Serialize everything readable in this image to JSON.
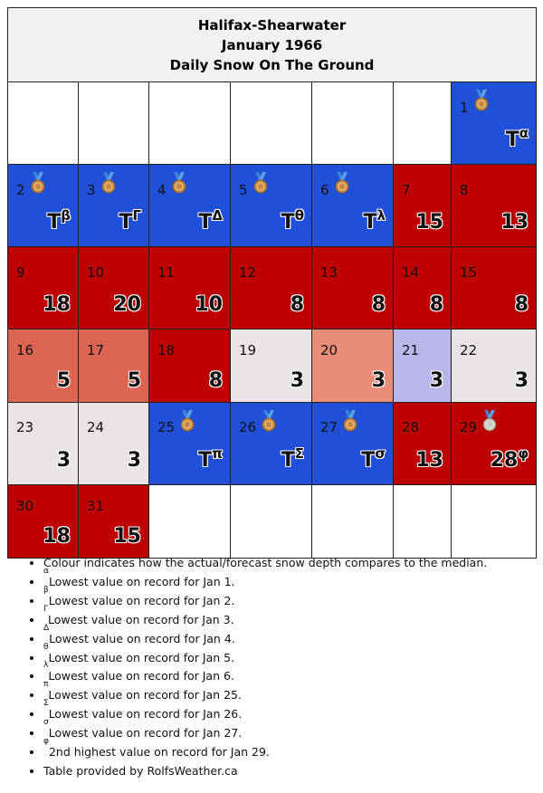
{
  "header": {
    "station": "Halifax-Shearwater",
    "month": "January 1966",
    "subtitle": "Daily Snow On The Ground"
  },
  "weeks": [
    [
      {
        "day": null,
        "color": "empty"
      },
      {
        "day": null,
        "color": "empty"
      },
      {
        "day": null,
        "color": "empty"
      },
      {
        "day": null,
        "color": "empty"
      },
      {
        "day": null,
        "color": "empty"
      },
      {
        "day": null,
        "color": "empty"
      },
      {
        "day": "1",
        "value": "T",
        "note": "α",
        "color": "blue",
        "medal": "bronze"
      }
    ],
    [
      {
        "day": "2",
        "value": "T",
        "note": "β",
        "color": "blue",
        "medal": "bronze"
      },
      {
        "day": "3",
        "value": "T",
        "note": "Γ",
        "color": "blue",
        "medal": "bronze"
      },
      {
        "day": "4",
        "value": "T",
        "note": "Δ",
        "color": "blue",
        "medal": "bronze"
      },
      {
        "day": "5",
        "value": "T",
        "note": "θ",
        "color": "blue",
        "medal": "bronze"
      },
      {
        "day": "6",
        "value": "T",
        "note": "λ",
        "color": "blue",
        "medal": "bronze"
      },
      {
        "day": "7",
        "value": "15",
        "note": "",
        "color": "red"
      },
      {
        "day": "8",
        "value": "13",
        "note": "",
        "color": "red"
      }
    ],
    [
      {
        "day": "9",
        "value": "18",
        "note": "",
        "color": "red"
      },
      {
        "day": "10",
        "value": "20",
        "note": "",
        "color": "red"
      },
      {
        "day": "11",
        "value": "10",
        "note": "",
        "color": "red"
      },
      {
        "day": "12",
        "value": "8",
        "note": "",
        "color": "red"
      },
      {
        "day": "13",
        "value": "8",
        "note": "",
        "color": "red"
      },
      {
        "day": "14",
        "value": "8",
        "note": "",
        "color": "red"
      },
      {
        "day": "15",
        "value": "8",
        "note": "",
        "color": "red"
      }
    ],
    [
      {
        "day": "16",
        "value": "5",
        "note": "",
        "color": "salmon1"
      },
      {
        "day": "17",
        "value": "5",
        "note": "",
        "color": "salmon1"
      },
      {
        "day": "18",
        "value": "8",
        "note": "",
        "color": "red"
      },
      {
        "day": "19",
        "value": "3",
        "note": "",
        "color": "pale"
      },
      {
        "day": "20",
        "value": "3",
        "note": "",
        "color": "salmon2"
      },
      {
        "day": "21",
        "value": "3",
        "note": "",
        "color": "lav"
      },
      {
        "day": "22",
        "value": "3",
        "note": "",
        "color": "pale"
      }
    ],
    [
      {
        "day": "23",
        "value": "3",
        "note": "",
        "color": "pale"
      },
      {
        "day": "24",
        "value": "3",
        "note": "",
        "color": "pale"
      },
      {
        "day": "25",
        "value": "T",
        "note": "π",
        "color": "blue",
        "medal": "bronze"
      },
      {
        "day": "26",
        "value": "T",
        "note": "Σ",
        "color": "blue",
        "medal": "bronze"
      },
      {
        "day": "27",
        "value": "T",
        "note": "σ",
        "color": "blue",
        "medal": "bronze"
      },
      {
        "day": "28",
        "value": "13",
        "note": "",
        "color": "red"
      },
      {
        "day": "29",
        "value": "28",
        "note": "φ",
        "color": "red",
        "medal": "silver"
      }
    ],
    [
      {
        "day": "30",
        "value": "18",
        "note": "",
        "color": "red"
      },
      {
        "day": "31",
        "value": "15",
        "note": "",
        "color": "red"
      },
      {
        "day": null,
        "color": "empty"
      },
      {
        "day": null,
        "color": "empty"
      },
      {
        "day": null,
        "color": "empty"
      },
      {
        "day": null,
        "color": "empty"
      },
      {
        "day": null,
        "color": "empty"
      }
    ]
  ],
  "colors": {
    "blue": "#2150d8",
    "red": "#bd0000",
    "salmon1": "#dd6652",
    "salmon2": "#e98c78",
    "lav": "#b9b6ea",
    "pale": "#ebe4e6",
    "empty": "#ffffff",
    "bronze": "#c98a3e",
    "silver": "#c9c9c9",
    "ribbon": "#3a86d9"
  },
  "notes": [
    {
      "sup": "",
      "text": "Colour indicates how the actual/forecast snow depth compares to the median."
    },
    {
      "sup": "α",
      "text": "Lowest value on record for Jan 1."
    },
    {
      "sup": "β",
      "text": "Lowest value on record for Jan 2."
    },
    {
      "sup": "Γ",
      "text": "Lowest value on record for Jan 3."
    },
    {
      "sup": "Δ",
      "text": "Lowest value on record for Jan 4."
    },
    {
      "sup": "θ",
      "text": "Lowest value on record for Jan 5."
    },
    {
      "sup": "λ",
      "text": "Lowest value on record for Jan 6."
    },
    {
      "sup": "π",
      "text": "Lowest value on record for Jan 25."
    },
    {
      "sup": "Σ",
      "text": "Lowest value on record for Jan 26."
    },
    {
      "sup": "σ",
      "text": "Lowest value on record for Jan 27."
    },
    {
      "sup": "φ",
      "text": "2nd highest value on record for Jan 29."
    },
    {
      "sup": "",
      "text": "Table provided by RolfsWeather.ca"
    }
  ]
}
